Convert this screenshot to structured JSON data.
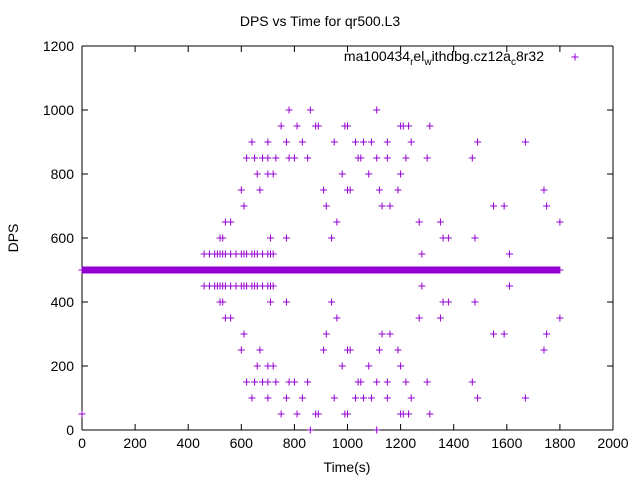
{
  "chart_data": {
    "type": "scatter",
    "title": "DPS vs Time for qr500.L3",
    "xlabel": "Time(s)",
    "ylabel": "DPS",
    "xlim": [
      0,
      2000
    ],
    "ylim": [
      0,
      1200
    ],
    "xticks": [
      "0",
      "200",
      "400",
      "600",
      "800",
      "1000",
      "1200",
      "1400",
      "1600",
      "1800",
      "2000"
    ],
    "yticks": [
      "0",
      "200",
      "400",
      "600",
      "800",
      "1000",
      "1200"
    ],
    "grid": false,
    "legend_position": "top-right",
    "series": [
      {
        "name": "ma100434_rel_withdbg.cz12a_c8r32",
        "legend_parts": [
          "ma100434",
          "r",
          "el",
          "w",
          "ithdbg.cz12a",
          "c",
          "8r32"
        ],
        "color": "#9400d3",
        "marker": "plus",
        "baseline_y": 500,
        "baseline_x_range": [
          0,
          1800
        ],
        "points": [
          [
            0,
            50
          ],
          [
            860,
            0
          ],
          [
            1110,
            0
          ],
          [
            780,
            1000
          ],
          [
            860,
            1000
          ],
          [
            1110,
            1000
          ],
          [
            750,
            950
          ],
          [
            810,
            950
          ],
          [
            880,
            950
          ],
          [
            890,
            950
          ],
          [
            990,
            950
          ],
          [
            1000,
            950
          ],
          [
            1200,
            950
          ],
          [
            1210,
            950
          ],
          [
            1230,
            950
          ],
          [
            1310,
            950
          ],
          [
            640,
            900
          ],
          [
            700,
            900
          ],
          [
            770,
            900
          ],
          [
            830,
            900
          ],
          [
            950,
            900
          ],
          [
            1030,
            900
          ],
          [
            1060,
            900
          ],
          [
            1090,
            900
          ],
          [
            1150,
            900
          ],
          [
            1240,
            900
          ],
          [
            1490,
            900
          ],
          [
            1670,
            900
          ],
          [
            620,
            850
          ],
          [
            650,
            850
          ],
          [
            680,
            850
          ],
          [
            700,
            850
          ],
          [
            730,
            850
          ],
          [
            780,
            850
          ],
          [
            800,
            850
          ],
          [
            850,
            850
          ],
          [
            1040,
            850
          ],
          [
            1050,
            850
          ],
          [
            1110,
            850
          ],
          [
            1150,
            850
          ],
          [
            1220,
            850
          ],
          [
            1300,
            850
          ],
          [
            1470,
            850
          ],
          [
            660,
            800
          ],
          [
            700,
            800
          ],
          [
            720,
            800
          ],
          [
            980,
            800
          ],
          [
            1080,
            800
          ],
          [
            1200,
            800
          ],
          [
            600,
            750
          ],
          [
            670,
            750
          ],
          [
            910,
            750
          ],
          [
            1000,
            750
          ],
          [
            1010,
            750
          ],
          [
            1120,
            750
          ],
          [
            1190,
            750
          ],
          [
            1740,
            750
          ],
          [
            610,
            700
          ],
          [
            920,
            700
          ],
          [
            1130,
            700
          ],
          [
            1160,
            700
          ],
          [
            1550,
            700
          ],
          [
            1590,
            700
          ],
          [
            1750,
            700
          ],
          [
            540,
            650
          ],
          [
            560,
            650
          ],
          [
            960,
            650
          ],
          [
            1270,
            650
          ],
          [
            1350,
            650
          ],
          [
            1800,
            650
          ],
          [
            520,
            600
          ],
          [
            530,
            600
          ],
          [
            710,
            600
          ],
          [
            770,
            600
          ],
          [
            940,
            600
          ],
          [
            1360,
            600
          ],
          [
            1380,
            600
          ],
          [
            1480,
            600
          ],
          [
            460,
            550
          ],
          [
            480,
            550
          ],
          [
            500,
            550
          ],
          [
            510,
            550
          ],
          [
            520,
            550
          ],
          [
            530,
            550
          ],
          [
            540,
            550
          ],
          [
            560,
            550
          ],
          [
            580,
            550
          ],
          [
            600,
            550
          ],
          [
            610,
            550
          ],
          [
            620,
            550
          ],
          [
            640,
            550
          ],
          [
            650,
            550
          ],
          [
            660,
            550
          ],
          [
            680,
            550
          ],
          [
            700,
            550
          ],
          [
            710,
            550
          ],
          [
            720,
            550
          ],
          [
            1280,
            550
          ],
          [
            1610,
            550
          ],
          [
            460,
            450
          ],
          [
            480,
            450
          ],
          [
            500,
            450
          ],
          [
            510,
            450
          ],
          [
            520,
            450
          ],
          [
            530,
            450
          ],
          [
            540,
            450
          ],
          [
            560,
            450
          ],
          [
            580,
            450
          ],
          [
            600,
            450
          ],
          [
            610,
            450
          ],
          [
            620,
            450
          ],
          [
            640,
            450
          ],
          [
            650,
            450
          ],
          [
            660,
            450
          ],
          [
            680,
            450
          ],
          [
            700,
            450
          ],
          [
            710,
            450
          ],
          [
            720,
            450
          ],
          [
            1280,
            450
          ],
          [
            1610,
            450
          ],
          [
            520,
            400
          ],
          [
            530,
            400
          ],
          [
            710,
            400
          ],
          [
            770,
            400
          ],
          [
            940,
            400
          ],
          [
            1360,
            400
          ],
          [
            1380,
            400
          ],
          [
            1480,
            400
          ],
          [
            540,
            350
          ],
          [
            560,
            350
          ],
          [
            960,
            350
          ],
          [
            1270,
            350
          ],
          [
            1350,
            350
          ],
          [
            1800,
            350
          ],
          [
            610,
            300
          ],
          [
            920,
            300
          ],
          [
            1130,
            300
          ],
          [
            1160,
            300
          ],
          [
            1550,
            300
          ],
          [
            1590,
            300
          ],
          [
            1750,
            300
          ],
          [
            600,
            250
          ],
          [
            670,
            250
          ],
          [
            910,
            250
          ],
          [
            1000,
            250
          ],
          [
            1010,
            250
          ],
          [
            1120,
            250
          ],
          [
            1190,
            250
          ],
          [
            1740,
            250
          ],
          [
            660,
            200
          ],
          [
            700,
            200
          ],
          [
            720,
            200
          ],
          [
            980,
            200
          ],
          [
            1080,
            200
          ],
          [
            1200,
            200
          ],
          [
            620,
            150
          ],
          [
            650,
            150
          ],
          [
            680,
            150
          ],
          [
            700,
            150
          ],
          [
            730,
            150
          ],
          [
            780,
            150
          ],
          [
            800,
            150
          ],
          [
            850,
            150
          ],
          [
            1040,
            150
          ],
          [
            1050,
            150
          ],
          [
            1110,
            150
          ],
          [
            1150,
            150
          ],
          [
            1220,
            150
          ],
          [
            1300,
            150
          ],
          [
            1470,
            150
          ],
          [
            640,
            100
          ],
          [
            700,
            100
          ],
          [
            770,
            100
          ],
          [
            830,
            100
          ],
          [
            950,
            100
          ],
          [
            1030,
            100
          ],
          [
            1060,
            100
          ],
          [
            1090,
            100
          ],
          [
            1150,
            100
          ],
          [
            1240,
            100
          ],
          [
            1490,
            100
          ],
          [
            1670,
            100
          ],
          [
            750,
            50
          ],
          [
            810,
            50
          ],
          [
            880,
            50
          ],
          [
            890,
            50
          ],
          [
            990,
            50
          ],
          [
            1000,
            50
          ],
          [
            1200,
            50
          ],
          [
            1210,
            50
          ],
          [
            1230,
            50
          ],
          [
            1310,
            50
          ]
        ]
      }
    ]
  }
}
